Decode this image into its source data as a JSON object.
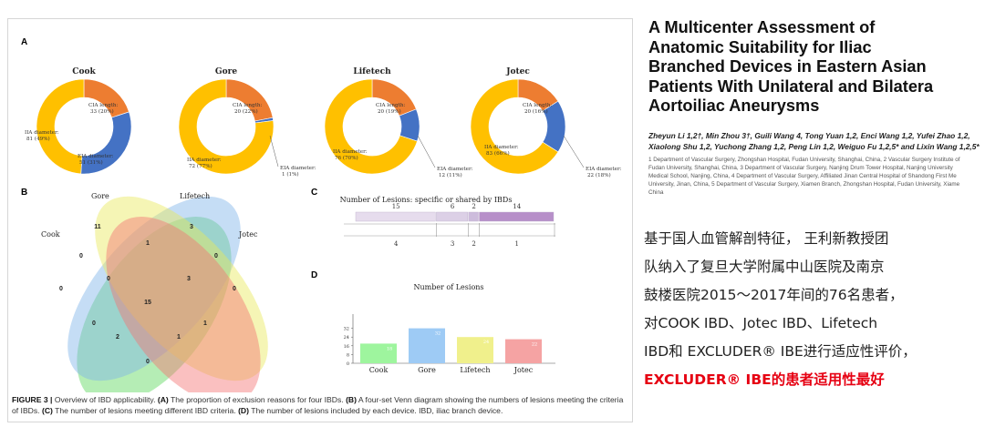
{
  "figure": {
    "panel_labels": {
      "a": "A",
      "b": "B",
      "c": "C",
      "d": "D"
    },
    "donuts": [
      {
        "title": "Cook",
        "slices": [
          {
            "label": "CIA length:",
            "value_text": "33 (20%)",
            "pct": 20,
            "color": "#ed7d31"
          },
          {
            "label": "EIA diameter:",
            "value_text": "51 (31%)",
            "pct": 31,
            "color": "#4472c4"
          },
          {
            "label": "IIA diameter:",
            "value_text": "81 (49%)",
            "pct": 49,
            "color": "#ffc000"
          }
        ]
      },
      {
        "title": "Gore",
        "slices": [
          {
            "label": "CIA length:",
            "value_text": "20 (22%)",
            "pct": 22,
            "color": "#ed7d31"
          },
          {
            "label": "EIA diameter:",
            "value_text": "1 (1%)",
            "pct": 1,
            "color": "#4472c4"
          },
          {
            "label": "IIA diameter:",
            "value_text": "72 (77%)",
            "pct": 77,
            "color": "#ffc000"
          }
        ]
      },
      {
        "title": "Lifetech",
        "slices": [
          {
            "label": "CIA length:",
            "value_text": "20 (19%)",
            "pct": 19,
            "color": "#ed7d31"
          },
          {
            "label": "EIA diameter:",
            "value_text": "12 (11%)",
            "pct": 11,
            "color": "#4472c4"
          },
          {
            "label": "IIA diameter:",
            "value_text": "76 (70%)",
            "pct": 70,
            "color": "#ffc000"
          }
        ]
      },
      {
        "title": "Jotec",
        "slices": [
          {
            "label": "CIA length:",
            "value_text": "20 (16%)",
            "pct": 16,
            "color": "#ed7d31"
          },
          {
            "label": "EIA diameter:",
            "value_text": "22 (18%)",
            "pct": 18,
            "color": "#4472c4"
          },
          {
            "label": "IIA diameter:",
            "value_text": "83 (66%)",
            "pct": 66,
            "color": "#ffc000"
          }
        ]
      }
    ],
    "venn": {
      "sets": [
        {
          "name": "Cook",
          "color": "#5bd65b"
        },
        {
          "name": "Gore",
          "color": "#7fb3e8"
        },
        {
          "name": "Lifetech",
          "color": "#e8e85a"
        },
        {
          "name": "Jotec",
          "color": "#f57373"
        }
      ],
      "counts": {
        "gore_only": "11",
        "lifetech_only": "3",
        "gore_lifetech": "1",
        "cook_gore": "0",
        "cook_only": "0",
        "jotec_only": "0",
        "lifetech_jotec": "0",
        "cook_gore_lifetech": "0",
        "gore_lifetech_jotec": "3",
        "all_four": "15",
        "cook_lifetech": "0",
        "cook_gore_jotec": "1",
        "cook_lifetech_jotec": "2",
        "cook_jotec_lower": "1",
        "cook_jotec": "0"
      }
    },
    "stacked_bar": {
      "title": "Number of Lesions: specific or shared by IBDs",
      "segments": [
        {
          "lesions": "15",
          "ibds": "4",
          "value": 15,
          "color": "#e6dced"
        },
        {
          "lesions": "6",
          "ibds": "3",
          "value": 6,
          "color": "#dcd0e6"
        },
        {
          "lesions": "2",
          "ibds": "2",
          "value": 2,
          "color": "#cdbcdc"
        },
        {
          "lesions": "14",
          "ibds": "1",
          "value": 14,
          "color": "#b78fc9"
        }
      ]
    },
    "bar_chart": {
      "title": "Number of Lesions",
      "y_ticks": [
        "0",
        "8",
        "16",
        "24",
        "32"
      ],
      "bars": [
        {
          "label": "Cook",
          "value": 18,
          "value_text": "18",
          "color": "#9ef59e"
        },
        {
          "label": "Gore",
          "value": 32,
          "value_text": "32",
          "color": "#9ecbf5"
        },
        {
          "label": "Lifetech",
          "value": 24,
          "value_text": "24",
          "color": "#f0f08c"
        },
        {
          "label": "Jotec",
          "value": 22,
          "value_text": "22",
          "color": "#f5a3a3"
        }
      ]
    },
    "caption": {
      "lead": "FIGURE 3 | ",
      "t1": "Overview of IBD applicability. ",
      "a": "(A)",
      "t2": " The proportion of exclusion reasons for four IBDs. ",
      "b": "(B)",
      "t3": " A four-set Venn diagram showing the numbers of lesions meeting the criteria of IBDs. ",
      "c": "(C)",
      "t4": " The number of lesions meeting different IBD criteria. ",
      "d": "(D)",
      "t5": " The number of lesions included by each device. IBD, iliac branch device."
    }
  },
  "article": {
    "title_lines": [
      "A Multicenter Assessment of",
      "Anatomic Suitability for Iliac",
      "Branched Devices in Eastern Asian",
      "Patients With Unilateral and Bilatera",
      "Aortoiliac Aneurysms"
    ],
    "authors_lines": [
      "Zheyun Li 1,2†, Min Zhou 3†, Guili Wang 4, Tong Yuan 1,2, Enci Wang 1,2, Yufei Zhao 1,2,",
      "Xiaolong Shu 1,2, Yuchong Zhang 1,2, Peng Lin 1,2, Weiguo Fu 1,2,5* and Lixin Wang 1,2,5*"
    ],
    "affiliation_lines": [
      "1 Department of Vascular Surgery, Zhongshan Hospital, Fudan University, Shanghai, China, 2 Vascular Surgery Institute of",
      "Fudan University, Shanghai, China, 3 Department of Vascular Surgery, Nanjing Drum Tower Hospital, Nanjing University",
      "Medical School, Nanjing, China, 4 Department of Vascular Surgery, Affiliated Jinan Central Hospital of Shandong First Me",
      "University, Jinan, China, 5 Department of Vascular Surgery, Xiamen Branch, Zhongshan Hospital, Fudan University, Xiame",
      "China"
    ],
    "summary_lines": [
      "基于国人血管解剖特征， 王利新教授团",
      "队纳入了复旦大学附属中山医院及南京",
      "鼓楼医院2015～2017年间的76名患者，",
      "对COOK IBD、Jotec IBD、Lifetech",
      "IBD和 EXCLUDER® IBE进行适应性评价，"
    ],
    "highlight": "EXCLUDER® IBE的患者适用性最好"
  }
}
